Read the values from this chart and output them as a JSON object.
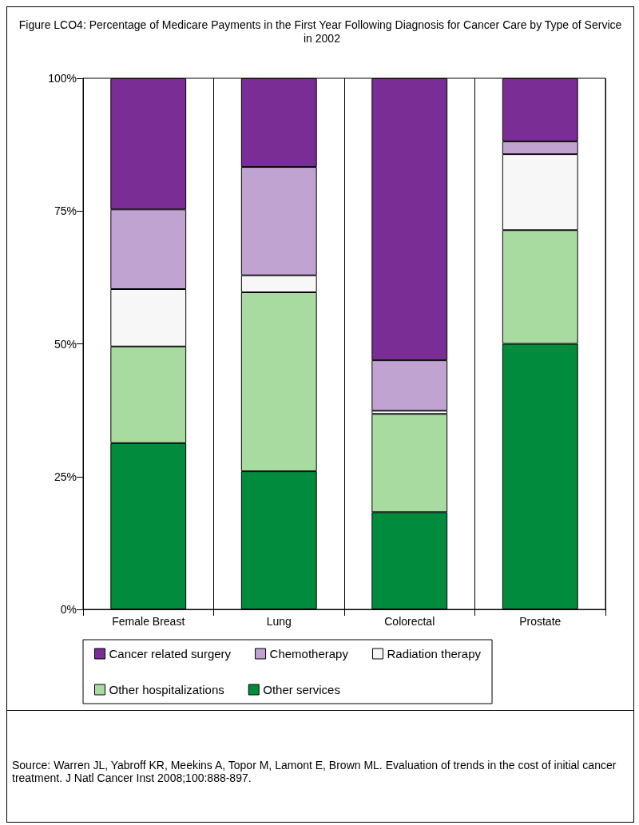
{
  "chart_data": {
    "type": "bar",
    "stacked": true,
    "title": "Figure LCO4: Percentage of Medicare Payments in the First Year Following Diagnosis for Cancer Care by Type of Service in 2002",
    "categories": [
      "Female Breast",
      "Lung",
      "Colorectal",
      "Prostate"
    ],
    "series": [
      {
        "name": "Other services",
        "color": "#008c3c",
        "values": [
          31.3,
          26.0,
          18.3,
          50.0
        ]
      },
      {
        "name": "Other hospitalizations",
        "color": "#a8dba0",
        "values": [
          18.2,
          33.7,
          18.5,
          21.4
        ]
      },
      {
        "name": "Radiation therapy",
        "color": "#f7f7f7",
        "values": [
          10.8,
          3.2,
          0.6,
          14.3
        ]
      },
      {
        "name": "Chemotherapy",
        "color": "#c0a3d0",
        "values": [
          15.0,
          20.4,
          9.5,
          2.4
        ]
      },
      {
        "name": "Cancer related surgery",
        "color": "#7b2d96",
        "values": [
          24.7,
          16.7,
          53.1,
          11.9
        ]
      }
    ],
    "ylim": [
      0,
      100
    ],
    "yticks": [
      {
        "value": 0,
        "label": "0%"
      },
      {
        "value": 25,
        "label": "25%"
      },
      {
        "value": 50,
        "label": "50%"
      },
      {
        "value": 75,
        "label": "75%"
      },
      {
        "value": 100,
        "label": "100%"
      }
    ],
    "grid": "x",
    "legend": "bottom",
    "annotations": [
      "Source: Warren JL, Yabroff KR, Meekins A, Topor M, Lamont E, Brown ML.   Evaluation of trends in the cost of initial cancer treatment. J Natl Cancer Inst 2008;100:888-897."
    ]
  }
}
